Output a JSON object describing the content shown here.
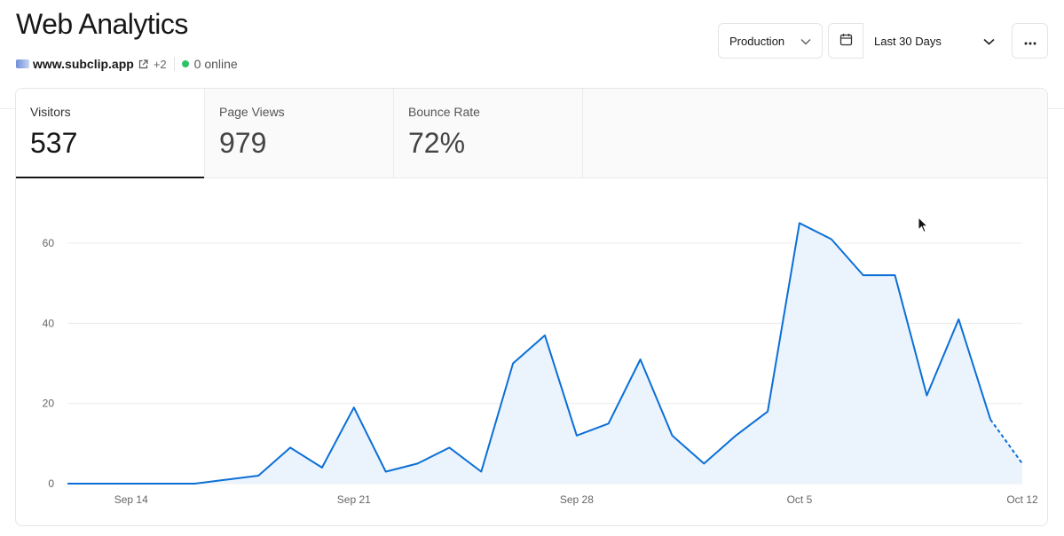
{
  "header": {
    "title": "Web Analytics",
    "domain": "www.subclip.app",
    "extra_domains": "+2",
    "online_status": "0 online",
    "online_color": "#2fc26b"
  },
  "controls": {
    "environment": "Production",
    "date_range": "Last 30 Days",
    "calendar_icon": "calendar-icon",
    "more_icon": "more-horizontal-icon"
  },
  "tabs": [
    {
      "label": "Visitors",
      "value": "537",
      "active": true
    },
    {
      "label": "Page Views",
      "value": "979",
      "active": false
    },
    {
      "label": "Bounce Rate",
      "value": "72%",
      "active": false
    }
  ],
  "chart_data": {
    "type": "area",
    "title": "",
    "xlabel": "",
    "ylabel": "",
    "ylim": [
      0,
      70
    ],
    "yticks": [
      0,
      20,
      40,
      60
    ],
    "grid": true,
    "x_tick_labels": [
      "Sep 14",
      "Sep 21",
      "Sep 28",
      "Oct 5",
      "Oct 12"
    ],
    "x_tick_indices": [
      2,
      9,
      16,
      23,
      30
    ],
    "x": [
      "Sep 12",
      "Sep 13",
      "Sep 14",
      "Sep 15",
      "Sep 16",
      "Sep 17",
      "Sep 18",
      "Sep 19",
      "Sep 20",
      "Sep 21",
      "Sep 22",
      "Sep 23",
      "Sep 24",
      "Sep 25",
      "Sep 26",
      "Sep 27",
      "Sep 28",
      "Sep 29",
      "Sep 30",
      "Oct 1",
      "Oct 2",
      "Oct 3",
      "Oct 4",
      "Oct 5",
      "Oct 6",
      "Oct 7",
      "Oct 8",
      "Oct 9",
      "Oct 10",
      "Oct 11",
      "Oct 12"
    ],
    "series": [
      {
        "values": [
          0,
          0,
          0,
          0,
          0,
          1,
          2,
          9,
          4,
          19,
          3,
          5,
          9,
          3,
          30,
          37,
          12,
          15,
          31,
          12,
          5,
          12,
          18,
          65,
          61,
          52,
          52,
          22,
          41,
          16,
          5
        ],
        "color": "#0b6fd6",
        "fill": "#ebf4fd",
        "partial_from_index": 29
      }
    ]
  }
}
